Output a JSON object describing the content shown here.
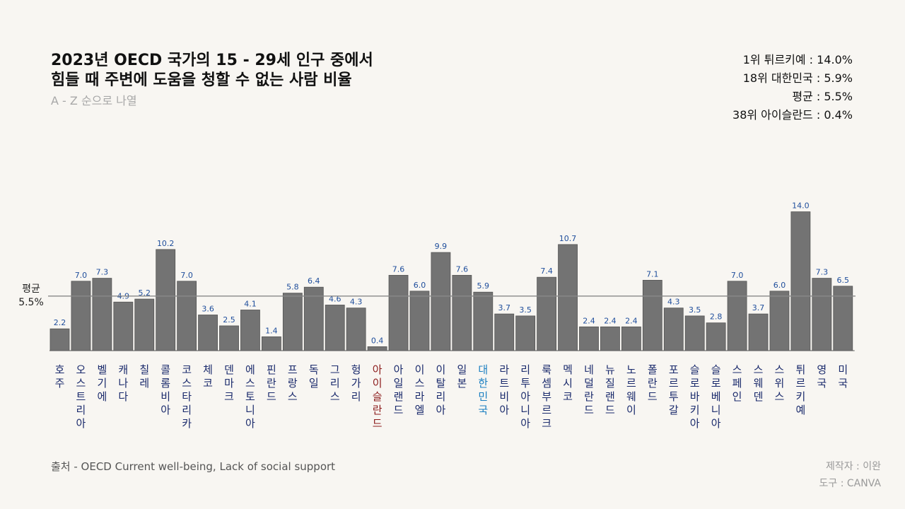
{
  "header": {
    "title_line1": "2023년 OECD 국가의 15 - 29세 인구 중에서",
    "title_line2": "힘들 때 주변에 도움을 청할 수 없는 사람 비율",
    "subtitle": "A - Z 순으로 나열"
  },
  "summary": {
    "top": "1위 튀르키예 : 14.0%",
    "korea": "18위 대한민국 : 5.9%",
    "average": "평균 : 5.5%",
    "bottom": "38위 아이슬란드 : 0.4%"
  },
  "footer": {
    "source": "출처 - OECD Current well-being, Lack of social support",
    "maker": "제작자 : 이완",
    "tool": "도구 : CANVA"
  },
  "colors": {
    "bar": "#737373",
    "value_label": "#1f4e9c",
    "category_default": "#1a2a6c",
    "category_korea": "#1a7fc1",
    "category_iceland": "#8b1a1a",
    "average_line": "#888888"
  },
  "chart_data": {
    "type": "bar",
    "title": "2023년 OECD 국가의 15 - 29세 인구 중에서 힘들 때 주변에 도움을 청할 수 없는 사람 비율",
    "xlabel": "",
    "ylabel": "",
    "ylim": [
      0,
      14.5
    ],
    "categories": [
      "호주",
      "오스트리아",
      "벨기에",
      "캐나다",
      "칠레",
      "콜롬비아",
      "코스타리카",
      "체코",
      "덴마크",
      "에스토니아",
      "핀란드",
      "프랑스",
      "독일",
      "그리스",
      "헝가리",
      "아이슬란드",
      "아일랜드",
      "이스라엘",
      "이탈리아",
      "일본",
      "대한민국",
      "라트비아",
      "리투아니아",
      "룩셈부르크",
      "멕시코",
      "네덜란드",
      "뉴질랜드",
      "노르웨이",
      "폴란드",
      "포르투갈",
      "슬로바키아",
      "슬로베니아",
      "스페인",
      "스웨덴",
      "스위스",
      "튀르키예",
      "영국",
      "미국"
    ],
    "values": [
      2.2,
      7.0,
      7.3,
      4.9,
      5.2,
      10.2,
      7.0,
      3.6,
      2.5,
      4.1,
      1.4,
      5.8,
      6.4,
      4.6,
      4.3,
      0.4,
      7.6,
      6.0,
      9.9,
      7.6,
      5.9,
      3.7,
      3.5,
      7.4,
      10.7,
      2.4,
      2.4,
      2.4,
      7.1,
      4.3,
      3.5,
      2.8,
      7.0,
      3.7,
      6.0,
      14.0,
      7.3,
      6.5
    ],
    "value_labels": [
      "2.2",
      "7.0",
      "7.3",
      "4.9",
      "5.2",
      "10.2",
      "7.0",
      "3.6",
      "2.5",
      "4.1",
      "1.4",
      "5.8",
      "6.4",
      "4.6",
      "4.3",
      "0.4",
      "7.6",
      "6.0",
      "9.9",
      "7.6",
      "5.9",
      "3.7",
      "3.5",
      "7.4",
      "10.7",
      "2.4",
      "2.4",
      "2.4",
      "7.1",
      "4.3",
      "3.5",
      "2.8",
      "7.0",
      "3.7",
      "6.0",
      "14.0",
      "7.3",
      "6.5"
    ],
    "highlight": {
      "대한민국": "korea",
      "아이슬란드": "iceland"
    },
    "average": {
      "value": 5.5,
      "label_top": "평균",
      "label_bottom": "5.5%"
    }
  }
}
